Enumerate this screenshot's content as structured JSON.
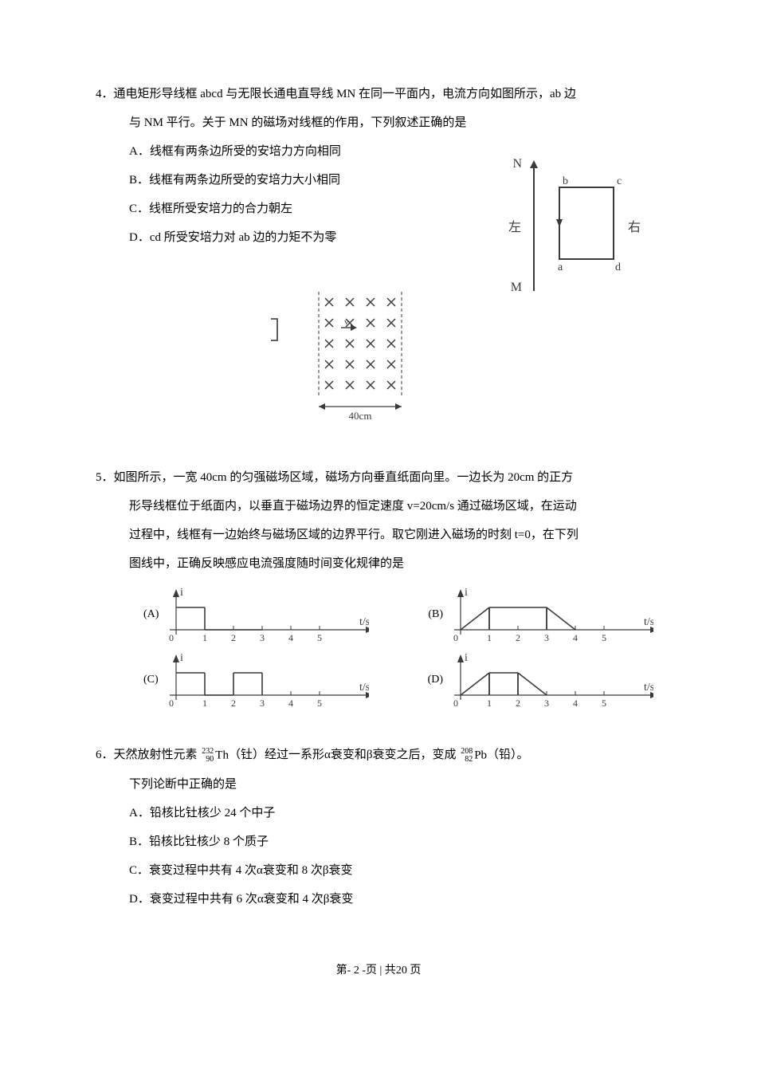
{
  "page": {
    "footer_prefix": "第-",
    "footer_pagenum": "2",
    "footer_mid": "-页 | 共",
    "footer_total": "20",
    "footer_suffix": "页"
  },
  "q4": {
    "number": "4．",
    "stem_line1": "通电矩形导线框 abcd 与无限长通电直导线 MN 在同一平面内，电流方向如图所示，ab 边",
    "stem_line2": "与 NM 平行。关于 MN 的磁场对线框的作用，下列叙述正确的是",
    "optA": "A．线框有两条边所受的安培力方向相同",
    "optB": "B．线框有两条边所受的安培力大小相同",
    "optC": "C．线框所受安培力的合力朝左",
    "optD": "D．cd 所受安培力对 ab 边的力矩不为零",
    "diagram": {
      "labels": {
        "N": "N",
        "M": "M",
        "a": "a",
        "b": "b",
        "c": "c",
        "d": "d",
        "left": "左",
        "right": "右"
      },
      "stroke_color": "#3a3a3a",
      "text_color": "#3a3a3a",
      "font_size": 16,
      "line_width": 2
    }
  },
  "q5": {
    "number": "5．",
    "stem_line1": "如图所示，一宽 40cm 的匀强磁场区域，磁场方向垂直纸面向里。一边长为 20cm 的正方",
    "stem_line2": "形导线框位于纸面内，以垂直于磁场边界的恒定速度 v=20cm/s 通过磁场区域，在运动",
    "stem_line3": "过程中，线框有一边始终与磁场区域的边界平行。取它刚进入磁场的时刻 t=0，在下列",
    "stem_line4": "图线中，正确反映感应电流强度随时间变化规律的是",
    "field_diagram": {
      "width_label": "40cm",
      "v_label": "v",
      "stroke_color": "#3a3a3a",
      "text_color": "#3a3a3a",
      "font_size": 13,
      "dash": "4,3",
      "rows": 5,
      "cols": 4
    },
    "charts": {
      "y_label": "i",
      "x_label": "t/s",
      "x_ticks": [
        "0",
        "1",
        "2",
        "3",
        "4",
        "5"
      ],
      "axis_color": "#3a3a3a",
      "tick_fontsize": 12,
      "label_fontsize": 14,
      "A": {
        "label": "(A)",
        "segments": [
          [
            0,
            0.8,
            1,
            0.8
          ],
          [
            1,
            0,
            3,
            0
          ]
        ]
      },
      "B": {
        "label": "(B)",
        "segments": [
          [
            0,
            0,
            1,
            0.8
          ],
          [
            1,
            0.8,
            3,
            0.8
          ],
          [
            3,
            0.8,
            4,
            0
          ]
        ]
      },
      "C": {
        "label": "(C)",
        "segments": [
          [
            0,
            0.8,
            1,
            0.8
          ],
          [
            1,
            0,
            2,
            0
          ],
          [
            2,
            0.8,
            3,
            0.8
          ]
        ]
      },
      "D": {
        "label": "(D)",
        "segments": [
          [
            0,
            0,
            1,
            0.8
          ],
          [
            1,
            0.8,
            2,
            0.8
          ],
          [
            2,
            0.8,
            3,
            0
          ]
        ]
      }
    }
  },
  "q6": {
    "number": "6．",
    "stem_pre": "天然放射性元素 ",
    "nuclide1": {
      "mass": "232",
      "atomic": "90",
      "symbol": "Th"
    },
    "stem_mid1": "（钍）经过一系形α衰变和β衰变之后，变成 ",
    "nuclide2": {
      "mass": "208",
      "atomic": "82",
      "symbol": "Pb"
    },
    "stem_mid2": "（铅）。",
    "stem_line2": "下列论断中正确的是",
    "optA": "A．铅核比钍核少 24 个中子",
    "optB": "B．铅核比钍核少 8 个质子",
    "optC": "C．衰变过程中共有 4 次α衰变和 8 次β衰变",
    "optD": "D．衰变过程中共有 6 次α衰变和 4 次β衰变"
  }
}
